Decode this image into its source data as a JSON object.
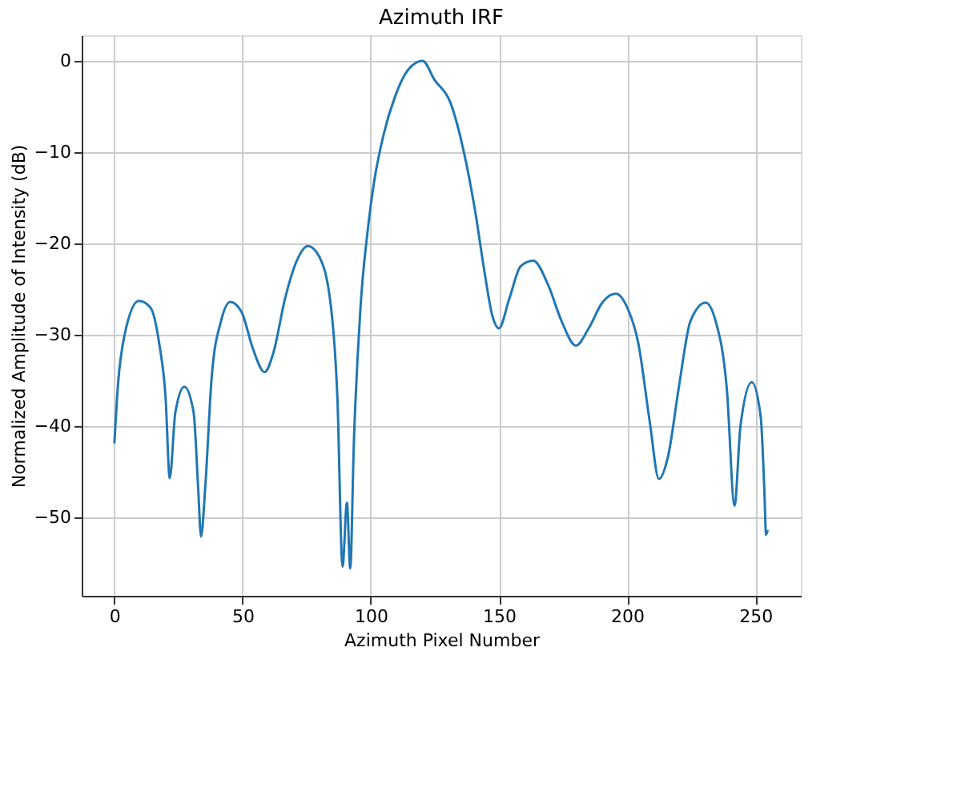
{
  "chart_data": {
    "type": "line",
    "title": "Azimuth IRF",
    "xlabel": "Azimuth Pixel Number",
    "ylabel": "Normalized Amplitude of Intensity (dB)",
    "x": [
      0,
      1.4,
      4,
      9.5,
      14,
      17.5,
      20,
      21.6,
      23.8,
      27.3,
      30.9,
      32.7,
      33.8,
      35.4,
      38,
      41.6,
      45.2,
      49.6,
      54,
      58.6,
      62,
      66.6,
      71,
      75.5,
      80,
      84.5,
      87,
      89,
      90.7,
      92,
      93.4,
      96,
      98.8,
      101.4,
      105,
      109.5,
      114.8,
      120.2,
      124.9,
      131.1,
      136.4,
      140.8,
      144.3,
      147.5,
      150,
      154.1,
      158.5,
      163.4,
      169.1,
      174.4,
      180,
      185,
      190.3,
      195.6,
      200,
      204.4,
      208.8,
      212.4,
      215.9,
      220.3,
      224.7,
      230.6,
      234.5,
      238.9,
      241.9,
      244.2,
      248.6,
      252.1,
      253.5,
      254.2,
      254.8
    ],
    "series": [
      {
        "color": "#1f77b4",
        "values": [
          -41.9,
          -35.5,
          -30,
          -26.3,
          -27,
          -31,
          -37,
          -45.7,
          -38.5,
          -35.7,
          -38.5,
          -46.9,
          -52.1,
          -46.9,
          -34.5,
          -28.5,
          -26.4,
          -27.5,
          -31.5,
          -34.1,
          -32,
          -26,
          -22,
          -20.3,
          -21.5,
          -27,
          -37,
          -55.4,
          -48.4,
          -55.6,
          -41.9,
          -27,
          -18.6,
          -13.1,
          -8.1,
          -3.9,
          -0.9,
          0,
          -2.1,
          -4.6,
          -10.1,
          -16.6,
          -23,
          -28,
          -29.3,
          -26,
          -22.5,
          -21.9,
          -24.5,
          -28.5,
          -31.2,
          -29.3,
          -26.5,
          -25.5,
          -27,
          -31,
          -39.5,
          -45.8,
          -43.4,
          -35.5,
          -28.5,
          -26.5,
          -28.5,
          -36,
          -48.7,
          -40,
          -35.2,
          -39,
          -46.9,
          -51.9,
          -51.4
        ]
      }
    ],
    "xlim": [
      -12.75,
      267.75
    ],
    "ylim": [
      -58.6,
      2.8
    ],
    "xticks": [
      0,
      50,
      100,
      150,
      200,
      250
    ],
    "yticks": [
      -50,
      -40,
      -30,
      -20,
      -10,
      0
    ],
    "grid": true,
    "marker": "none",
    "line_style": "solid"
  }
}
